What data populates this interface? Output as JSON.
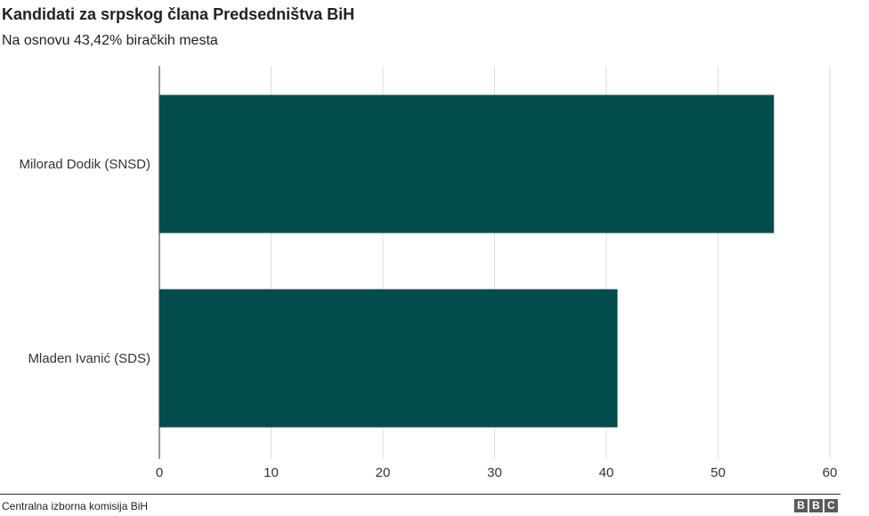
{
  "header": {
    "title": "Kandidati za srpskog člana Predsedništva BiH",
    "subtitle": "Na osnovu 43,42% biračkih mesta"
  },
  "footer": {
    "source": "Centralna izborna komisija BiH",
    "logo_letters": [
      "B",
      "B",
      "C"
    ]
  },
  "colors": {
    "bar": "#034c4e",
    "grid": "#dddddd",
    "text": "#222222"
  },
  "chart_data": {
    "type": "bar",
    "orientation": "horizontal",
    "title": "Kandidati za srpskog člana Predsedništva BiH",
    "subtitle": "Na osnovu 43,42% biračkih mesta",
    "categories": [
      "Milorad Dodik (SNSD)",
      "Mladen Ivanić (SDS)"
    ],
    "values": [
      55.0,
      41.0
    ],
    "xlim": [
      0,
      60
    ],
    "x_ticks": [
      0,
      10,
      20,
      30,
      40,
      50,
      60
    ],
    "grid": true,
    "xlabel": "",
    "ylabel": ""
  }
}
